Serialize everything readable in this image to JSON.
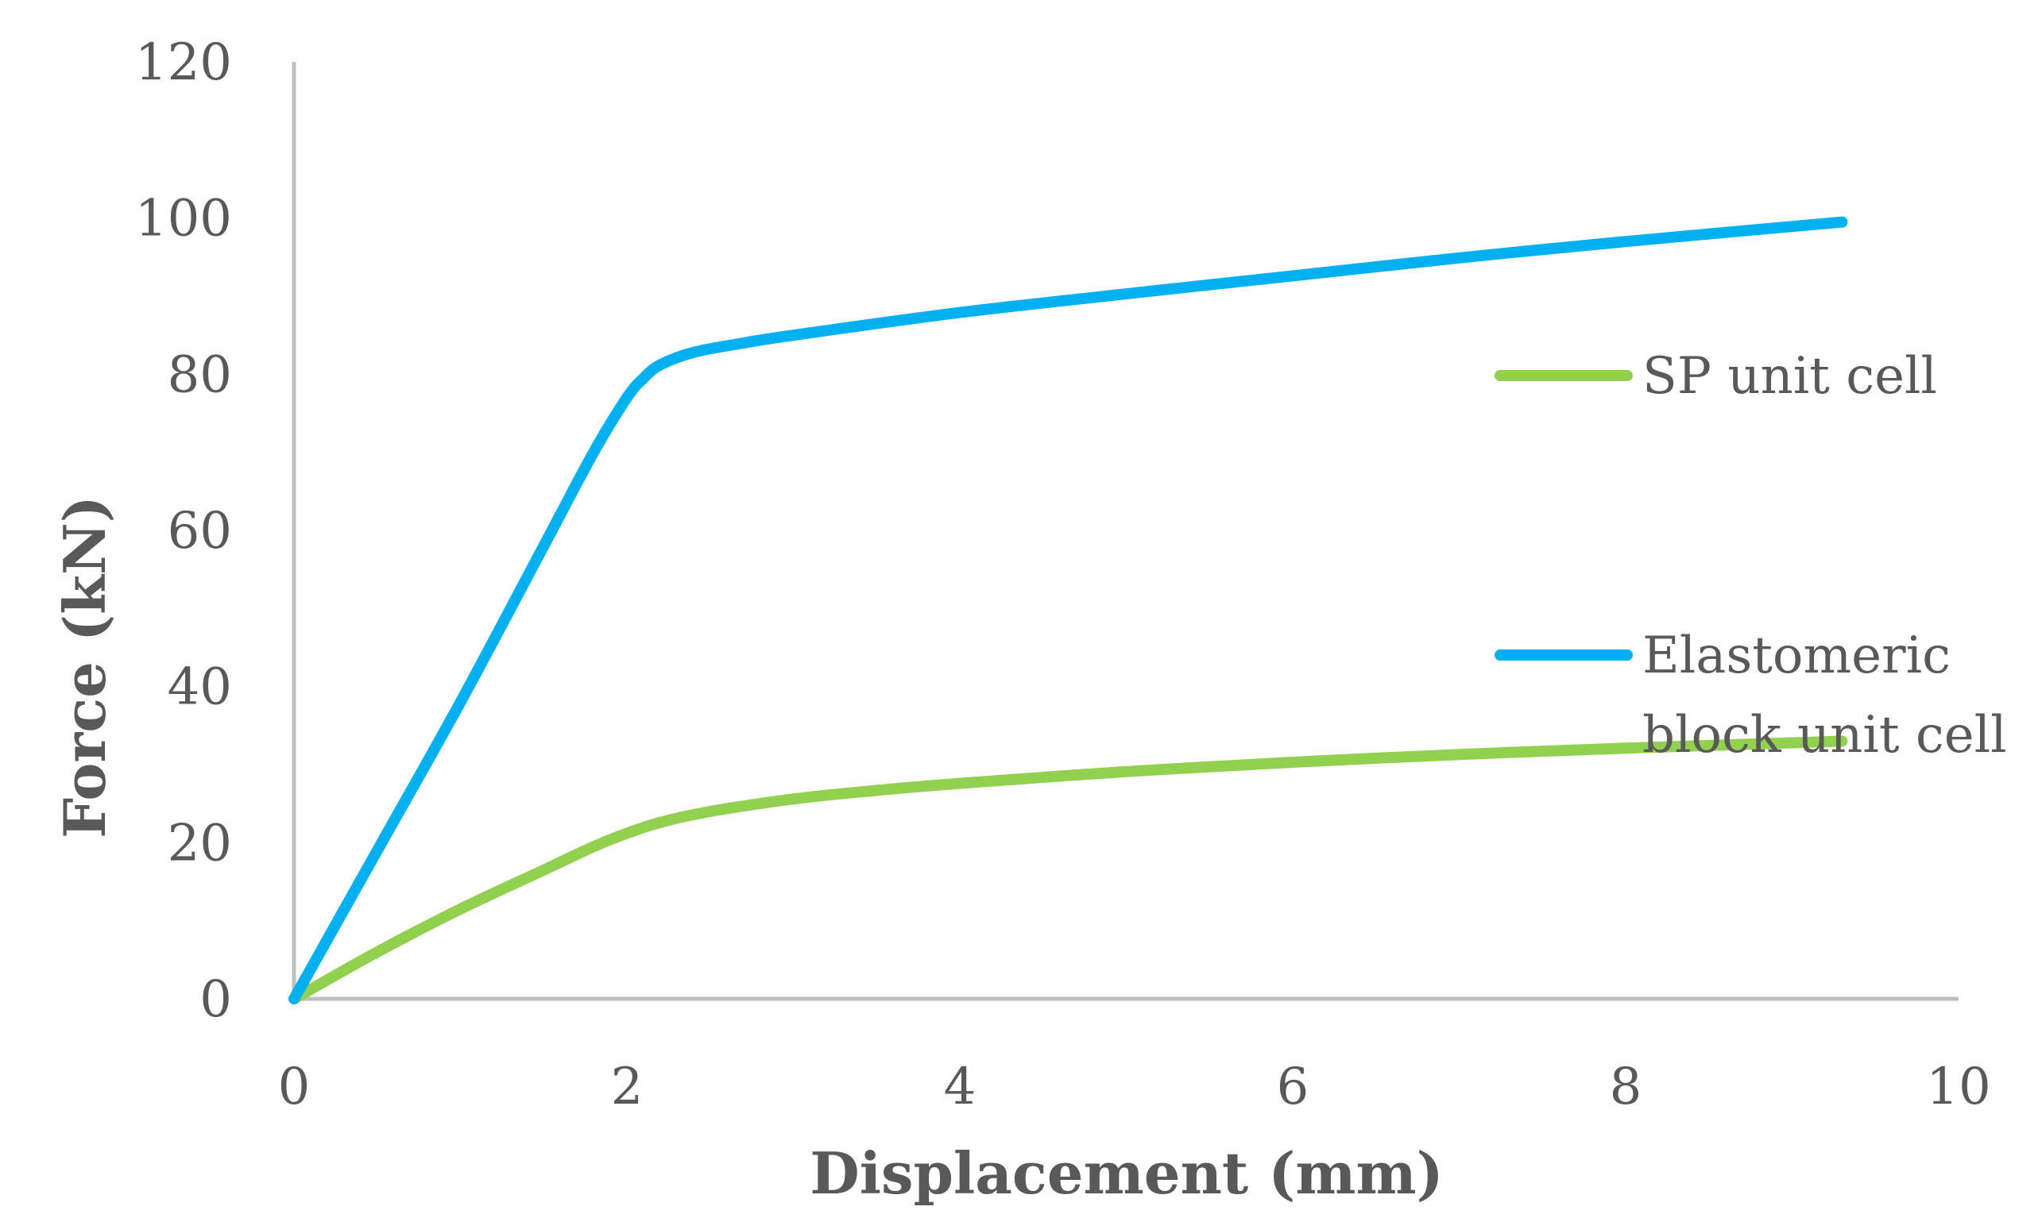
{
  "chart_data": {
    "type": "line",
    "title": "",
    "xlabel": "Displacement (mm)",
    "ylabel": "Force (kN)",
    "xlim": [
      0,
      10
    ],
    "ylim": [
      0,
      120
    ],
    "x_ticks": [
      "0",
      "2",
      "4",
      "6",
      "8",
      "10"
    ],
    "y_ticks": [
      "0",
      "20",
      "40",
      "60",
      "80",
      "100",
      "120"
    ],
    "grid": false,
    "legend_position": "right",
    "series": [
      {
        "name": "SP unit cell",
        "color": "#92D050",
        "x": [
          0,
          0.5,
          1.0,
          1.5,
          1.8,
          2.0,
          2.2,
          2.5,
          3.0,
          3.5,
          4.0,
          5.0,
          6.0,
          7.0,
          8.0,
          9.3
        ],
        "y": [
          0,
          6,
          11.5,
          16.5,
          19.5,
          21.2,
          22.6,
          24.0,
          25.6,
          26.7,
          27.6,
          29.1,
          30.3,
          31.3,
          32.1,
          33.0
        ]
      },
      {
        "name": "Elastomeric block unit cell",
        "color": "#00B0F0",
        "x": [
          0,
          0.5,
          1.0,
          1.5,
          1.8,
          2.0,
          2.1,
          2.2,
          2.4,
          2.7,
          3.0,
          4.0,
          5.0,
          6.0,
          7.0,
          8.0,
          9.3
        ],
        "y": [
          0,
          19,
          38,
          58,
          70,
          77,
          79.5,
          81.2,
          82.8,
          84.0,
          85.0,
          87.9,
          90.3,
          92.6,
          94.9,
          97.0,
          99.5
        ]
      }
    ]
  }
}
